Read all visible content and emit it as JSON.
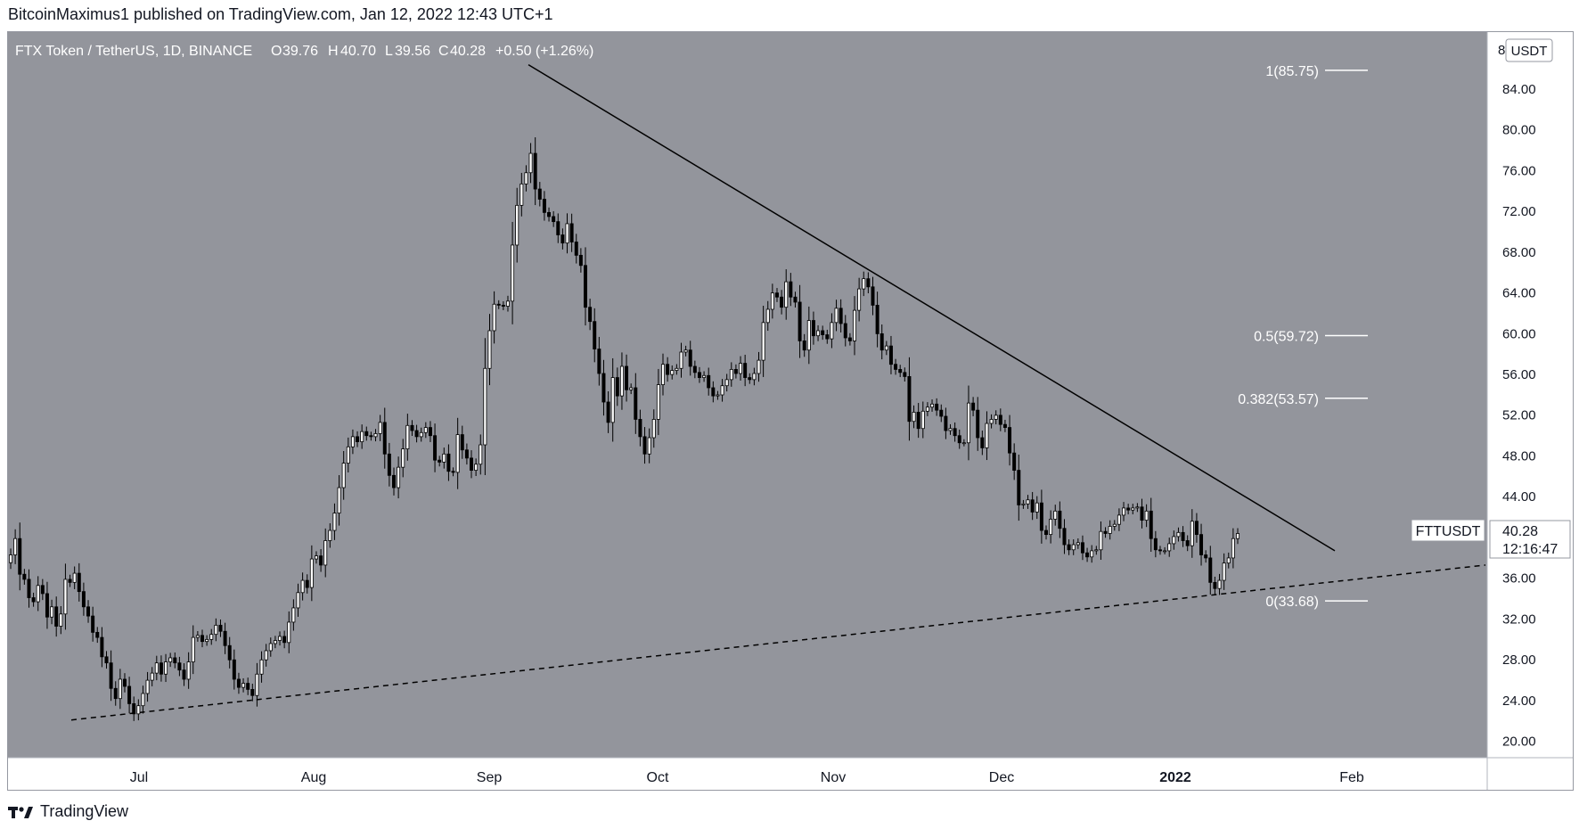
{
  "header": {
    "publisher_text": "BitcoinMaximus1 published on TradingView.com, Jan 12, 2022 12:43 UTC+1"
  },
  "legend": {
    "symbol": "FTX Token / TetherUS, 1D, BINANCE",
    "open_label": "O",
    "open": "39.76",
    "high_label": "H",
    "high": "40.70",
    "low_label": "L",
    "low": "39.56",
    "close_label": "C",
    "close": "40.28",
    "change": "+0.50 (+1.26%)"
  },
  "price_axis": {
    "currency": "USDT",
    "top_clip": "8",
    "ticks": [
      "84.00",
      "80.00",
      "76.00",
      "72.00",
      "68.00",
      "64.00",
      "60.00",
      "56.00",
      "52.00",
      "48.00",
      "44.00",
      "40.00",
      "36.00",
      "32.00",
      "28.00",
      "24.00",
      "20.00"
    ],
    "last_price": "40.28",
    "countdown": "12:16:47",
    "symbol_tag": "FTTUSDT"
  },
  "time_axis": {
    "labels": [
      "Jul",
      "Aug",
      "Sep",
      "Oct",
      "Nov",
      "Dec",
      "2022",
      "Feb"
    ]
  },
  "footer": {
    "brand": "TradingView",
    "logo_icon": "tradingview-logo-icon"
  },
  "colors": {
    "plot_bg": "#93959c",
    "candle_up": "#ffffff",
    "candle_down": "#000000",
    "line": "#000000",
    "axis_text": "#131722"
  },
  "chart_data": {
    "type": "candlestick",
    "title": "FTX Token / TetherUS, 1D, BINANCE",
    "ylim": [
      18.3,
      89.5
    ],
    "xlabel": "",
    "ylabel": "",
    "x_ticks": [
      "Jul",
      "Aug",
      "Sep",
      "Oct",
      "Nov",
      "Dec",
      "2022",
      "Feb"
    ],
    "closes": [
      38.2,
      39.8,
      36.3,
      35.8,
      34.0,
      33.6,
      35.2,
      34.4,
      32.1,
      33.1,
      31.2,
      32.4,
      35.8,
      35.5,
      36.4,
      34.6,
      33.1,
      32.2,
      30.6,
      30.1,
      28.2,
      27.6,
      25.1,
      24.1,
      26.0,
      25.3,
      23.6,
      22.6,
      23.4,
      24.6,
      25.9,
      26.6,
      27.6,
      26.5,
      27.7,
      28.1,
      27.6,
      26.9,
      26.0,
      27.7,
      30.1,
      30.3,
      29.7,
      29.9,
      30.4,
      31.3,
      30.7,
      29.3,
      27.9,
      26.0,
      25.2,
      25.6,
      25.0,
      24.4,
      26.5,
      27.9,
      28.8,
      29.5,
      29.8,
      30.2,
      29.6,
      31.6,
      33.0,
      34.5,
      35.7,
      35.0,
      37.8,
      38.1,
      37.2,
      39.6,
      40.6,
      42.3,
      44.8,
      47.2,
      48.8,
      49.8,
      49.3,
      50.3,
      49.9,
      49.8,
      50.1,
      51.2,
      48.1,
      46.0,
      44.8,
      46.8,
      48.6,
      50.9,
      50.4,
      49.8,
      50.2,
      50.7,
      49.9,
      47.5,
      47.3,
      48.1,
      46.4,
      46.3,
      50.0,
      48.5,
      47.7,
      46.5,
      47.1,
      49.0,
      56.5,
      60.2,
      62.8,
      62.7,
      62.6,
      63.1,
      68.6,
      72.5,
      74.6,
      75.7,
      77.6,
      74.1,
      73.1,
      71.8,
      71.4,
      70.9,
      69.6,
      68.8,
      70.7,
      68.9,
      67.6,
      66.6,
      62.5,
      61.1,
      58.4,
      56.0,
      53.2,
      51.2,
      55.6,
      53.8,
      56.7,
      54.4,
      54.6,
      51.5,
      49.8,
      48.1,
      49.7,
      51.5,
      54.9,
      56.9,
      55.9,
      56.3,
      56.5,
      58.1,
      58.3,
      56.7,
      56.1,
      55.6,
      55.8,
      54.6,
      53.8,
      53.9,
      54.8,
      55.4,
      56.4,
      56.0,
      57.0,
      55.6,
      55.4,
      56.0,
      57.3,
      61.0,
      62.3,
      63.9,
      63.5,
      62.5,
      65.0,
      63.5,
      63.0,
      59.2,
      58.3,
      61.2,
      59.7,
      60.2,
      59.8,
      59.4,
      61.0,
      62.4,
      60.9,
      59.5,
      59.2,
      62.2,
      64.3,
      65.3,
      64.5,
      62.7,
      59.9,
      58.3,
      58.7,
      56.9,
      56.4,
      56.1,
      55.7,
      51.3,
      52.2,
      50.6,
      52.3,
      52.7,
      53.0,
      52.4,
      51.8,
      50.4,
      50.6,
      49.9,
      49.2,
      49.2,
      53.1,
      52.4,
      49.7,
      48.7,
      51.1,
      51.5,
      51.9,
      51.0,
      50.7,
      48.2,
      46.5,
      43.1,
      43.2,
      43.6,
      42.4,
      43.3,
      40.6,
      40.2,
      41.7,
      42.5,
      40.8,
      39.2,
      38.7,
      39.2,
      39.4,
      38.4,
      38.0,
      38.6,
      38.7,
      40.5,
      40.3,
      41.0,
      41.2,
      42.1,
      42.8,
      42.6,
      42.8,
      42.9,
      41.6,
      42.5,
      39.8,
      38.7,
      38.6,
      38.6,
      39.3,
      40.0,
      40.4,
      39.6,
      39.1,
      41.5,
      40.2,
      38.2,
      37.9,
      35.5,
      34.9,
      35.7,
      37.4,
      37.9,
      39.8,
      40.3
    ]
  }
}
